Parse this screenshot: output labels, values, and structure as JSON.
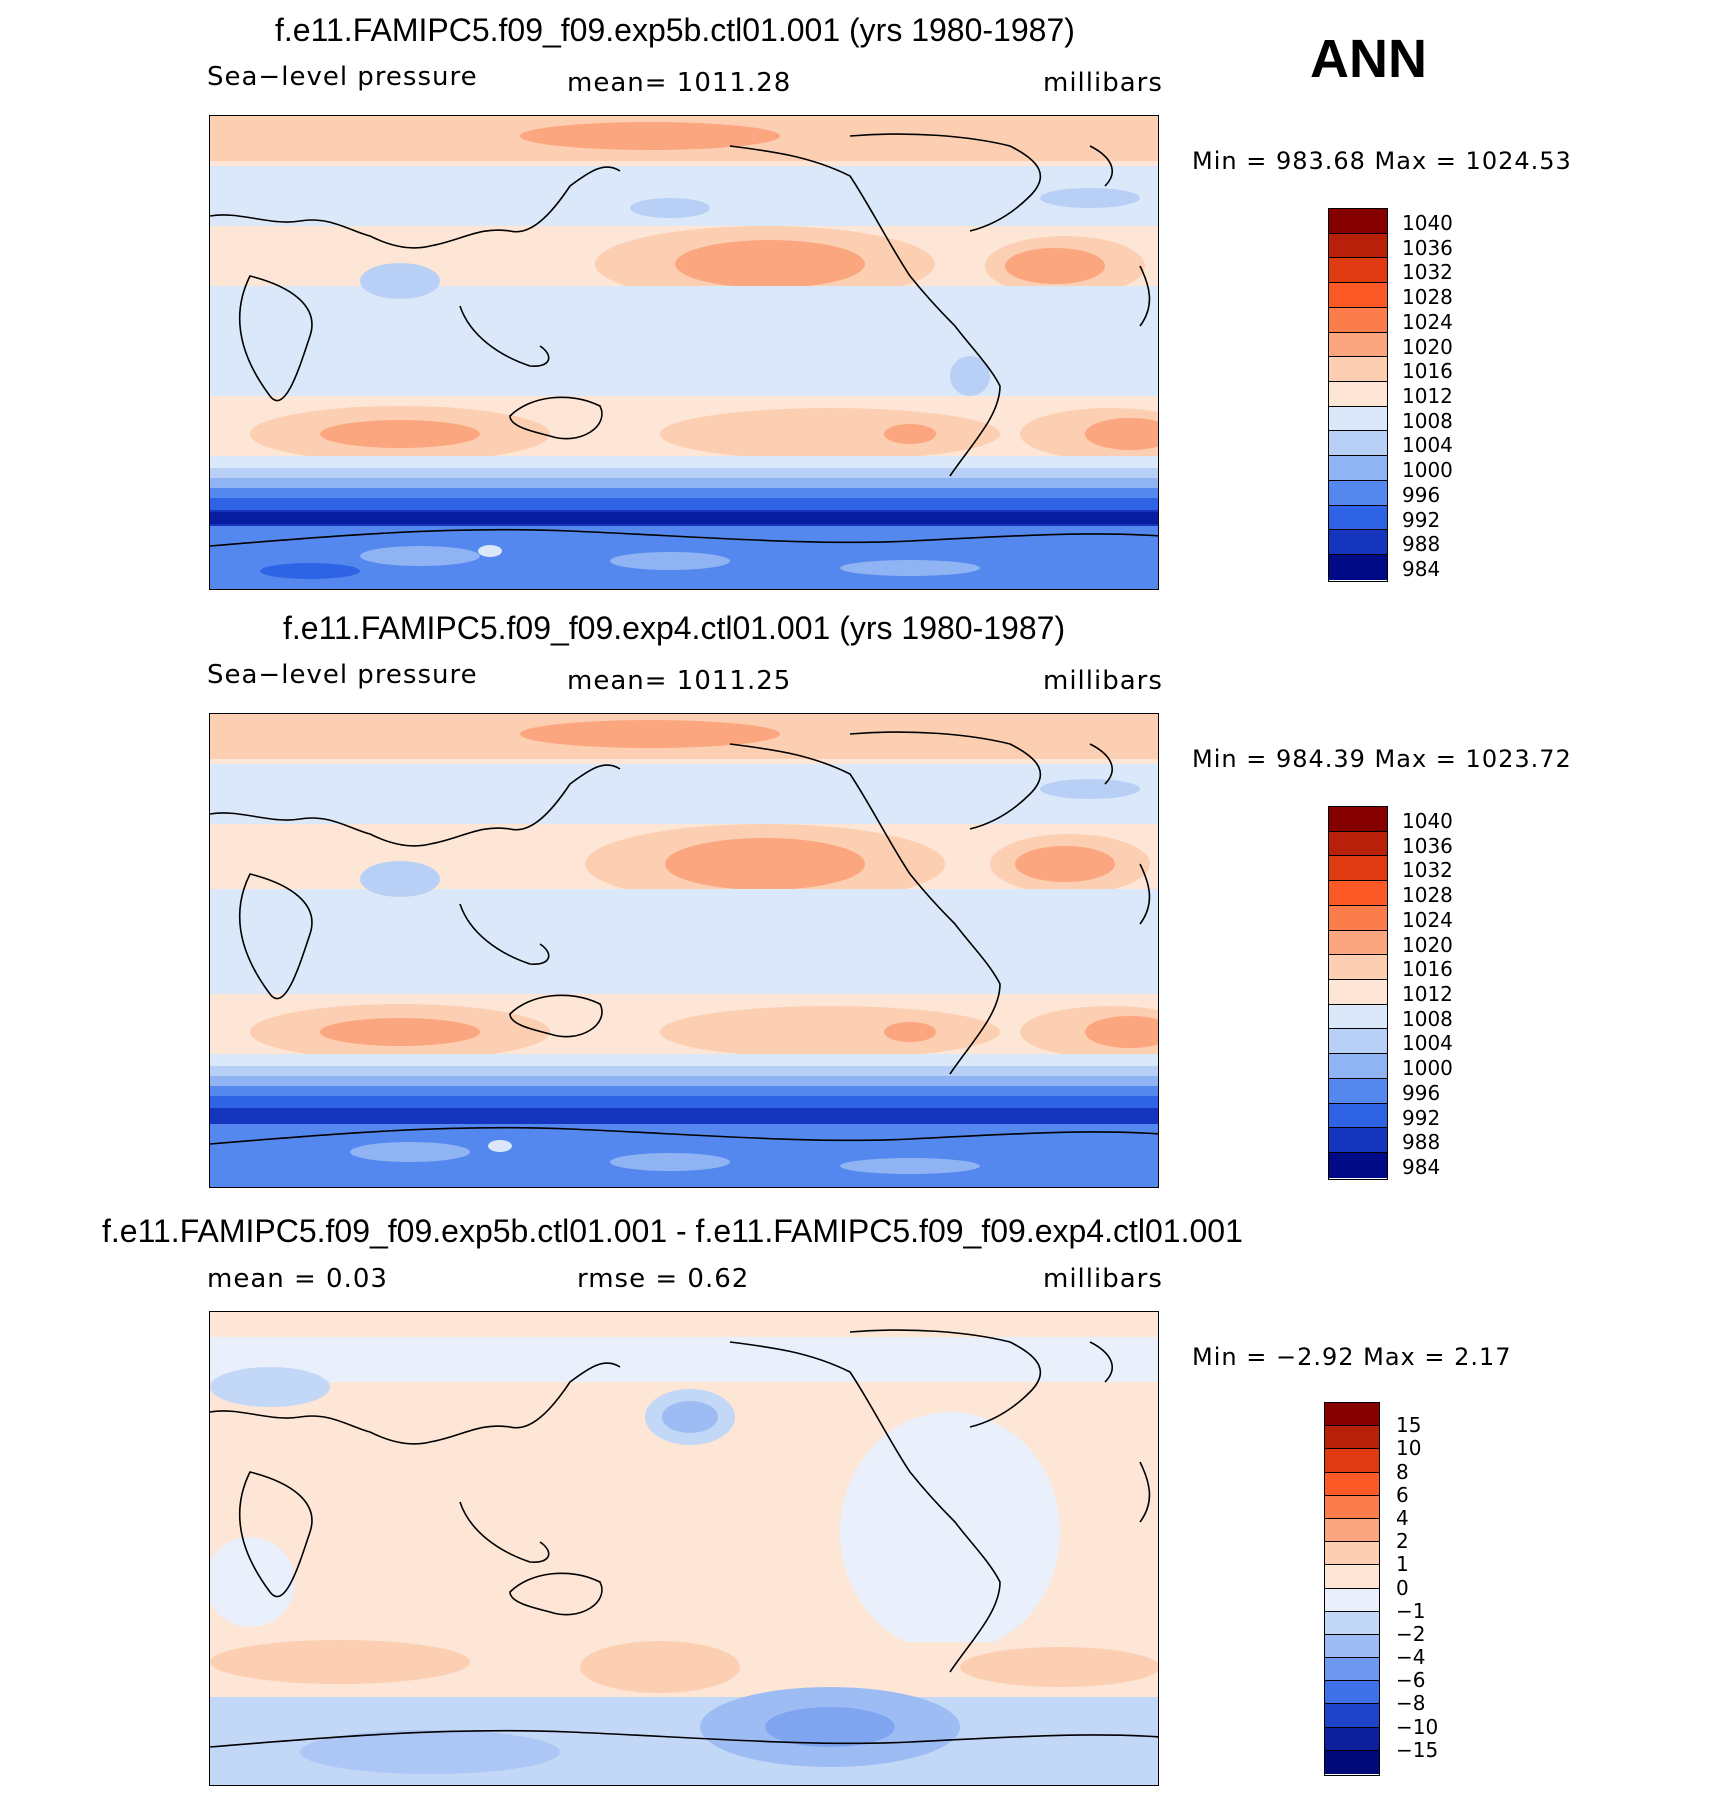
{
  "season": "ANN",
  "chart_data": [
    {
      "type": "heatmap",
      "title": "f.e11.FAMIPC5.f09_f09.exp5b.ctl01.001 (yrs 1980-1987)",
      "variable": "Sea−level pressure",
      "mean_text": "mean=  1011.28",
      "units": "millibars",
      "min_max_text": "Min  =  983.68  Max  =  1024.53",
      "min": 983.68,
      "max": 1024.53,
      "colorbar_levels": [
        "1040",
        "1036",
        "1032",
        "1028",
        "1024",
        "1020",
        "1016",
        "1012",
        "1008",
        "1004",
        "1000",
        "996",
        "992",
        "988",
        "984"
      ],
      "colorbar_colors": [
        "#870000",
        "#b8200a",
        "#e03a12",
        "#fb5a26",
        "#fc7d4c",
        "#fca67f",
        "#fccfb3",
        "#fde6d6",
        "#dbe8f9",
        "#b8d0f6",
        "#8fb3f3",
        "#5588ee",
        "#2e63e6",
        "#1535bf",
        "#000a87"
      ]
    },
    {
      "type": "heatmap",
      "title": "f.e11.FAMIPC5.f09_f09.exp4.ctl01.001 (yrs 1980-1987)",
      "variable": "Sea−level pressure",
      "mean_text": "mean=  1011.25",
      "units": "millibars",
      "min_max_text": "Min  =  984.39  Max  =  1023.72",
      "min": 984.39,
      "max": 1023.72,
      "colorbar_levels": [
        "1040",
        "1036",
        "1032",
        "1028",
        "1024",
        "1020",
        "1016",
        "1012",
        "1008",
        "1004",
        "1000",
        "996",
        "992",
        "988",
        "984"
      ],
      "colorbar_colors": [
        "#870000",
        "#b8200a",
        "#e03a12",
        "#fb5a26",
        "#fc7d4c",
        "#fca67f",
        "#fccfb3",
        "#fde6d6",
        "#dbe8f9",
        "#b8d0f6",
        "#8fb3f3",
        "#5588ee",
        "#2e63e6",
        "#1535bf",
        "#000a87"
      ]
    },
    {
      "type": "heatmap",
      "title": "f.e11.FAMIPC5.f09_f09.exp5b.ctl01.001 - f.e11.FAMIPC5.f09_f09.exp4.ctl01.001",
      "mean_text": "mean  =     0.03",
      "rmse_text": "rmse  =     0.62",
      "units": "millibars",
      "min_max_text": "Min  =    −2.92  Max  =     2.17",
      "min": -2.92,
      "max": 2.17,
      "colorbar_levels": [
        "15",
        "10",
        "8",
        "6",
        "4",
        "2",
        "1",
        "0",
        "−1",
        "−2",
        "−4",
        "−6",
        "−8",
        "−10",
        "−15"
      ],
      "colorbar_colors": [
        "#870000",
        "#b8200a",
        "#e03a12",
        "#fb5a26",
        "#fc7d4c",
        "#fca67f",
        "#fccfb3",
        "#fde6d6",
        "#e9f0fb",
        "#c3d7f7",
        "#9dbcf4",
        "#6e98ef",
        "#3f72e8",
        "#1f44c9",
        "#0c1e9c",
        "#000a78"
      ]
    }
  ]
}
